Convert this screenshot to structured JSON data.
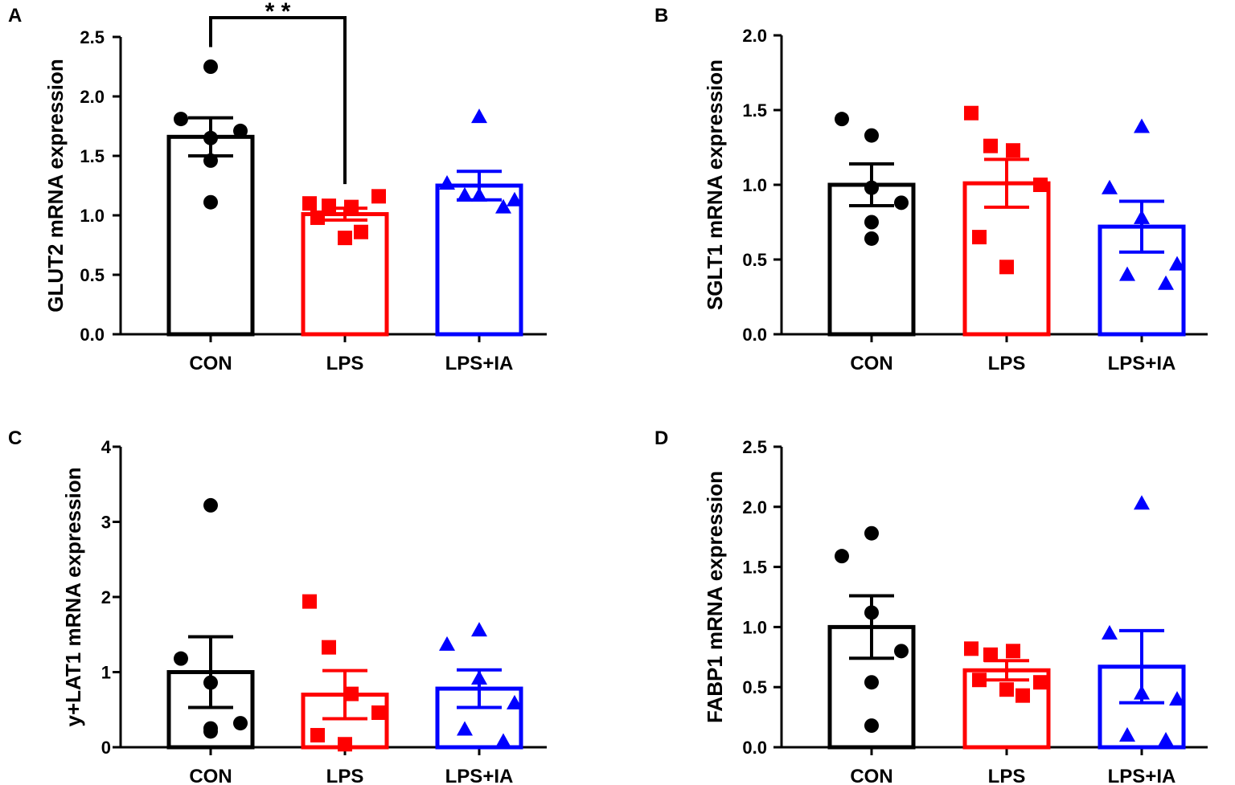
{
  "colors": {
    "CON": "#000000",
    "LPS": "#ff0000",
    "LPS+IA": "#0000ff"
  },
  "chart_data": [
    {
      "type": "bar",
      "panel_label": "A",
      "ylabel": "GLUT2 mRNA expression",
      "categories": [
        "CON",
        "LPS",
        "LPS+IA"
      ],
      "ylim": [
        0,
        2.5
      ],
      "yticks": [
        "0.0",
        "0.5",
        "1.0",
        "1.5",
        "2.0",
        "2.5"
      ],
      "series": [
        {
          "name": "CON",
          "marker": "circle",
          "mean": 1.66,
          "sem": 0.16,
          "points": [
            2.25,
            1.81,
            1.65,
            1.71,
            1.46,
            1.11
          ]
        },
        {
          "name": "LPS",
          "marker": "square",
          "mean": 1.01,
          "sem": 0.05,
          "points": [
            1.1,
            1.08,
            1.07,
            1.16,
            0.98,
            0.81,
            0.86
          ]
        },
        {
          "name": "LPS+IA",
          "marker": "triangle",
          "mean": 1.25,
          "sem": 0.12,
          "points": [
            1.83,
            1.27,
            1.17,
            1.13,
            1.17,
            1.07
          ]
        }
      ],
      "significance": {
        "from": "CON",
        "to": "LPS",
        "label": "* *"
      }
    },
    {
      "type": "bar",
      "panel_label": "B",
      "ylabel": "SGLT1 mRNA  expression",
      "categories": [
        "CON",
        "LPS",
        "LPS+IA"
      ],
      "ylim": [
        0,
        2.0
      ],
      "yticks": [
        "0.0",
        "0.5",
        "1.0",
        "1.5",
        "2.0"
      ],
      "series": [
        {
          "name": "CON",
          "marker": "circle",
          "mean": 1.0,
          "sem": 0.14,
          "points": [
            1.33,
            1.44,
            0.98,
            0.88,
            0.75,
            0.64
          ]
        },
        {
          "name": "LPS",
          "marker": "square",
          "mean": 1.01,
          "sem": 0.16,
          "points": [
            1.48,
            1.26,
            1.23,
            1.0,
            0.65,
            0.45
          ]
        },
        {
          "name": "LPS+IA",
          "marker": "triangle",
          "mean": 0.72,
          "sem": 0.17,
          "points": [
            1.39,
            0.98,
            0.78,
            0.47,
            0.4,
            0.34
          ]
        }
      ]
    },
    {
      "type": "bar",
      "panel_label": "C",
      "ylabel": "y+LAT1 mRNA expression",
      "categories": [
        "CON",
        "LPS",
        "LPS+IA"
      ],
      "ylim": [
        0,
        4
      ],
      "yticks": [
        "0",
        "1",
        "2",
        "3",
        "4"
      ],
      "series": [
        {
          "name": "CON",
          "marker": "circle",
          "mean": 1.0,
          "sem": 0.47,
          "points": [
            3.22,
            1.18,
            0.86,
            0.32,
            0.25,
            0.21
          ]
        },
        {
          "name": "LPS",
          "marker": "square",
          "mean": 0.7,
          "sem": 0.32,
          "points": [
            1.94,
            1.33,
            0.71,
            0.46,
            0.16,
            0.04
          ]
        },
        {
          "name": "LPS+IA",
          "marker": "triangle",
          "mean": 0.78,
          "sem": 0.25,
          "points": [
            1.56,
            1.37,
            0.92,
            0.59,
            0.24,
            0.08
          ]
        }
      ]
    },
    {
      "type": "bar",
      "panel_label": "D",
      "ylabel": "FABP1 mRNA expression",
      "categories": [
        "CON",
        "LPS",
        "LPS+IA"
      ],
      "ylim": [
        0,
        2.5
      ],
      "yticks": [
        "0.0",
        "0.5",
        "1.0",
        "1.5",
        "2.0",
        "2.5"
      ],
      "series": [
        {
          "name": "CON",
          "marker": "circle",
          "mean": 1.0,
          "sem": 0.26,
          "points": [
            1.78,
            1.59,
            1.12,
            0.8,
            0.54,
            0.18
          ]
        },
        {
          "name": "LPS",
          "marker": "square",
          "mean": 0.64,
          "sem": 0.08,
          "points": [
            0.82,
            0.77,
            0.8,
            0.54,
            0.56,
            0.48,
            0.43
          ]
        },
        {
          "name": "LPS+IA",
          "marker": "triangle",
          "mean": 0.67,
          "sem": 0.3,
          "points": [
            2.03,
            0.95,
            0.45,
            0.4,
            0.1,
            0.06
          ]
        }
      ]
    }
  ]
}
